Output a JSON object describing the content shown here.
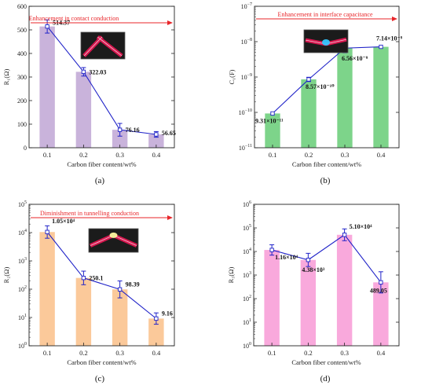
{
  "chart_data": [
    {
      "id": "a",
      "panel_label": "(a)",
      "type": "bar",
      "scale": "linear",
      "ylabel": "R₁(Ω)",
      "xlabel": "Carbon fiber content/wt%",
      "categories": [
        "0.1",
        "0.2",
        "0.3",
        "0.4"
      ],
      "values": [
        514.37,
        322.03,
        76.16,
        56.65
      ],
      "errors": [
        28,
        18,
        27,
        12
      ],
      "data_labels": [
        "514.37",
        "322.03",
        "76.16",
        "56.65"
      ],
      "ylim": [
        0,
        600
      ],
      "yticks": [
        0,
        100,
        200,
        300,
        400,
        500,
        600
      ],
      "ytick_labels": [
        "0",
        "100",
        "200",
        "300",
        "400",
        "500",
        "600"
      ],
      "bar_color": "#c9b3db",
      "annotation": "Enhancement in contact conduction",
      "arrow_direction": "right",
      "inset": "contact"
    },
    {
      "id": "b",
      "panel_label": "(b)",
      "type": "bar",
      "scale": "log",
      "ylabel": "C₁(F)",
      "xlabel": "Carbon fiber content/wt%",
      "categories": [
        "0.1",
        "0.2",
        "0.3",
        "0.4"
      ],
      "values": [
        9.31e-11,
        8.57e-10,
        6.56e-09,
        7.14e-09
      ],
      "errors_decades": [
        0,
        0.06,
        0.13,
        0
      ],
      "data_labels": [
        "9.31×10⁻¹¹",
        "8.57×10⁻¹⁰",
        "6.56×10⁻⁹",
        "7.14×10⁻⁹"
      ],
      "ylim": [
        1e-11,
        1e-07
      ],
      "ytick_exponents": [
        -11,
        -10,
        -9,
        -8,
        -7
      ],
      "bar_color": "#7dd48a",
      "annotation": "Enhancement in interface capacitance",
      "arrow_direction": "right",
      "inset": "interface"
    },
    {
      "id": "c",
      "panel_label": "(c)",
      "type": "bar",
      "scale": "log",
      "ylabel": "R₂(Ω)",
      "xlabel": "Carbon fiber content/wt%",
      "categories": [
        "0.1",
        "0.2",
        "0.3",
        "0.4"
      ],
      "values": [
        10500,
        250.1,
        98.39,
        9.16
      ],
      "errors_decades": [
        0.22,
        0.24,
        0.3,
        0.2
      ],
      "data_labels": [
        "1.05×10⁴",
        "250.1",
        "98.39",
        "9.16"
      ],
      "ylim": [
        1,
        100000
      ],
      "ytick_exponents": [
        0,
        1,
        2,
        3,
        4,
        5
      ],
      "bar_color": "#fbc99a",
      "annotation": "Diminishment in tunnelling conduction",
      "arrow_direction": "right",
      "inset": "tunnel"
    },
    {
      "id": "d",
      "panel_label": "(d)",
      "type": "bar",
      "scale": "log",
      "ylabel": "R₃(Ω)",
      "xlabel": "Carbon fiber content/wt%",
      "categories": [
        "0.1",
        "0.2",
        "0.3",
        "0.4"
      ],
      "values": [
        11600,
        4380,
        51000,
        489.05
      ],
      "errors_decades": [
        0.22,
        0.28,
        0.25,
        0.45
      ],
      "data_labels": [
        "1.16×10⁴",
        "4.38×10³",
        "5.10×10⁴",
        "489.05"
      ],
      "ylim": [
        1,
        1000000
      ],
      "ytick_exponents": [
        0,
        1,
        2,
        3,
        4,
        5,
        6
      ],
      "bar_color": "#f9a9dc",
      "annotation": "",
      "inset": ""
    }
  ],
  "colors": {
    "line": "#1f22c8",
    "annotation": "#e8262a",
    "axis": "#222222"
  }
}
